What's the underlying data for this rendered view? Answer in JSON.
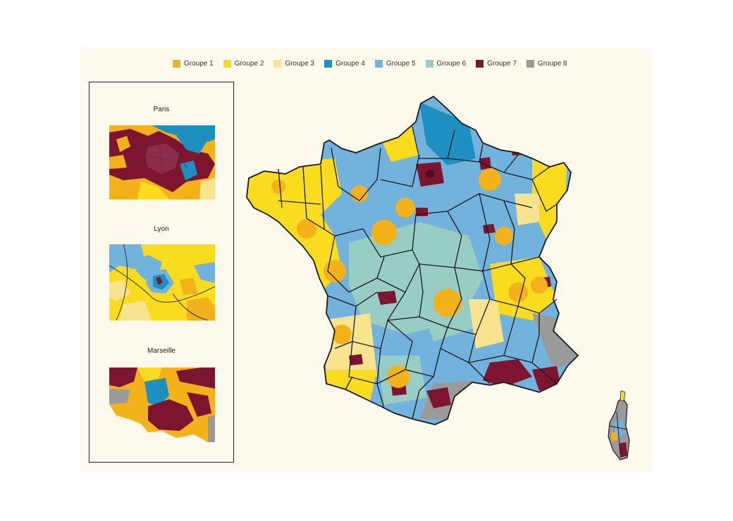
{
  "legend": {
    "items": [
      {
        "label": "Groupe 1",
        "color": "#f3b21a"
      },
      {
        "label": "Groupe 2",
        "color": "#f9dc1e"
      },
      {
        "label": "Groupe 3",
        "color": "#f8e48e"
      },
      {
        "label": "Groupe 4",
        "color": "#1d8fc0"
      },
      {
        "label": "Groupe 5",
        "color": "#72b3dd"
      },
      {
        "label": "Groupe 6",
        "color": "#98cdc4"
      },
      {
        "label": "Groupe 7",
        "color": "#7d1531"
      },
      {
        "label": "Groupe 8",
        "color": "#9a9a9a"
      }
    ]
  },
  "insets": {
    "paris": {
      "title": "Paris"
    },
    "lyon": {
      "title": "Lyon"
    },
    "marseille": {
      "title": "Marseille"
    }
  },
  "map": {
    "territories": [
      "France métropolitaine",
      "Corse"
    ]
  }
}
